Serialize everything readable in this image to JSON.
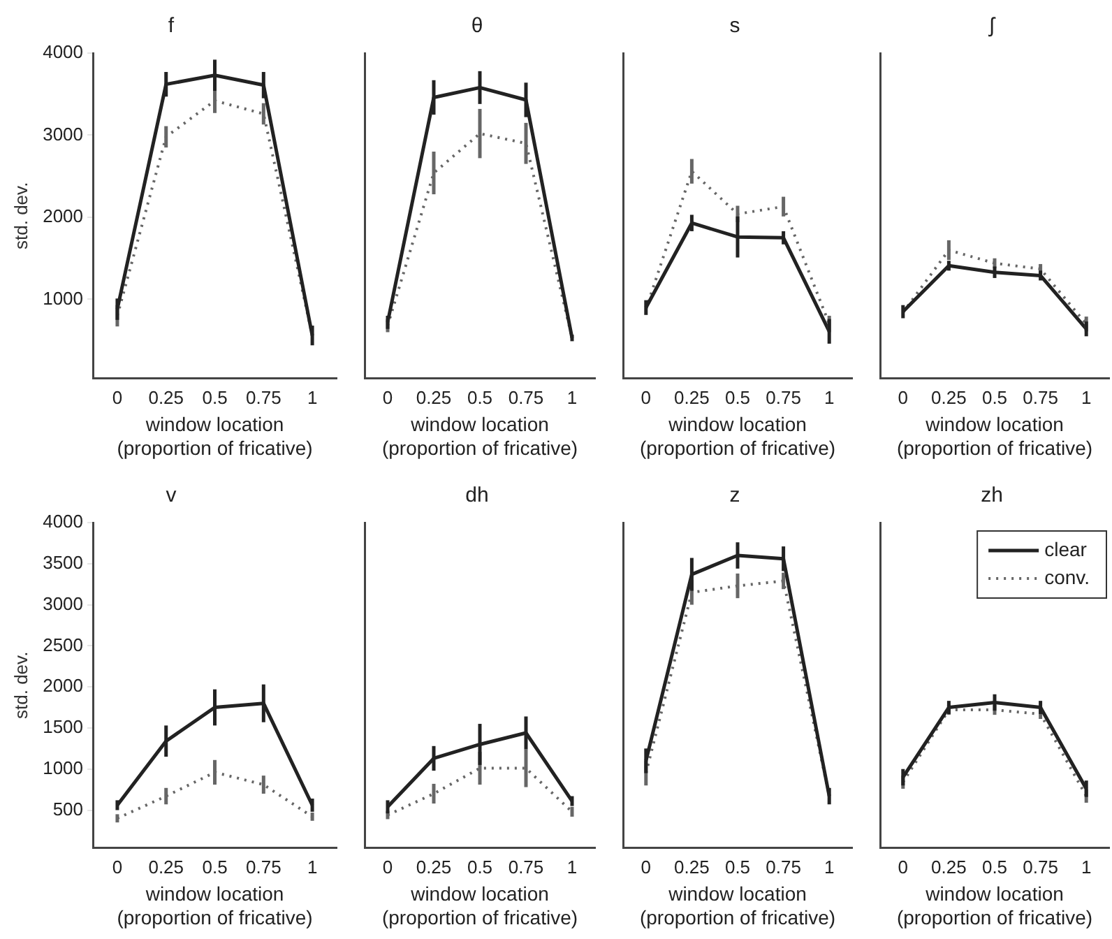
{
  "chart_data": [
    {
      "type": "line",
      "title": "f",
      "xlabel": "window location\n(proportion of fricative)",
      "ylabel": "std. dev.",
      "x": [
        0,
        0.25,
        0.5,
        0.75,
        1
      ],
      "xlim": [
        -0.125,
        1.125
      ],
      "xticks": [
        0,
        0.25,
        0.5,
        0.75,
        1
      ],
      "ylim": [
        37,
        4000
      ],
      "yticks": [
        1000,
        2000,
        3000,
        4000
      ],
      "marker": "none",
      "legend": false,
      "series": [
        {
          "color": "#222222",
          "line_style": "solid",
          "values": [
            880,
            3620,
            3730,
            3610,
            560
          ],
          "errors": [
            130,
            150,
            190,
            160,
            120
          ]
        },
        {
          "color": "#666666",
          "line_style": "dotted",
          "values": [
            800,
            2980,
            3420,
            3260,
            560
          ],
          "errors": [
            130,
            130,
            150,
            130,
            null
          ]
        }
      ]
    },
    {
      "type": "line",
      "title": "θ",
      "xlabel": "window location\n(proportion of fricative)",
      "x": [
        0,
        0.25,
        0.5,
        0.75,
        1
      ],
      "xlim": [
        -0.125,
        1.125
      ],
      "xticks": [
        0,
        0.25,
        0.5,
        0.75,
        1
      ],
      "ylim": [
        37,
        4000
      ],
      "yticks": [
        1000,
        2000,
        3000,
        4000
      ],
      "tick_labels": "x",
      "marker": "none",
      "legend": false,
      "series": [
        {
          "color": "#222222",
          "line_style": "solid",
          "values": [
            720,
            3460,
            3580,
            3430,
            530
          ],
          "errors": [
            80,
            210,
            200,
            210,
            40
          ]
        },
        {
          "color": "#666666",
          "line_style": "dotted",
          "values": [
            680,
            2540,
            3020,
            2900,
            530
          ],
          "errors": [
            80,
            260,
            300,
            250,
            null
          ]
        }
      ]
    },
    {
      "type": "line",
      "title": "s",
      "xlabel": "window location\n(proportion of fricative)",
      "x": [
        0,
        0.25,
        0.5,
        0.75,
        1
      ],
      "xlim": [
        -0.125,
        1.125
      ],
      "xticks": [
        0,
        0.25,
        0.5,
        0.75,
        1
      ],
      "ylim": [
        37,
        4000
      ],
      "yticks": [
        1000,
        2000,
        3000,
        4000
      ],
      "tick_labels": "x",
      "marker": "none",
      "legend": false,
      "series": [
        {
          "color": "#222222",
          "line_style": "solid",
          "values": [
            900,
            1930,
            1760,
            1750,
            610
          ],
          "errors": [
            90,
            100,
            250,
            80,
            150
          ]
        },
        {
          "color": "#666666",
          "line_style": "dotted",
          "values": [
            880,
            2560,
            2040,
            2130,
            700
          ],
          "errors": [
            null,
            150,
            100,
            120,
            100
          ]
        }
      ]
    },
    {
      "type": "line",
      "title": "ʃ",
      "xlabel": "window location\n(proportion of fricative)",
      "x": [
        0,
        0.25,
        0.5,
        0.75,
        1
      ],
      "xlim": [
        -0.125,
        1.125
      ],
      "xticks": [
        0,
        0.25,
        0.5,
        0.75,
        1
      ],
      "ylim": [
        37,
        4000
      ],
      "yticks": [
        1000,
        2000,
        3000,
        4000
      ],
      "tick_labels": "x",
      "marker": "none",
      "legend": false,
      "series": [
        {
          "color": "#222222",
          "line_style": "solid",
          "values": [
            850,
            1410,
            1330,
            1290,
            640
          ],
          "errors": [
            80,
            60,
            70,
            60,
            90
          ]
        },
        {
          "color": "#666666",
          "line_style": "dotted",
          "values": [
            840,
            1600,
            1440,
            1370,
            700
          ],
          "errors": [
            null,
            120,
            60,
            60,
            90
          ]
        }
      ]
    },
    {
      "type": "line",
      "title": "v",
      "xlabel": "window location\n(proportion of fricative)",
      "ylabel": "std. dev.",
      "x": [
        0,
        0.25,
        0.5,
        0.75,
        1
      ],
      "xlim": [
        -0.125,
        1.125
      ],
      "xticks": [
        0,
        0.25,
        0.5,
        0.75,
        1
      ],
      "ylim": [
        40,
        4000
      ],
      "yticks": [
        500,
        1000,
        1500,
        2000,
        2500,
        3000,
        3500,
        4000
      ],
      "marker": "none",
      "legend": false,
      "series": [
        {
          "color": "#222222",
          "line_style": "solid",
          "values": [
            560,
            1340,
            1750,
            1800,
            560
          ],
          "errors": [
            60,
            190,
            220,
            230,
            80
          ]
        },
        {
          "color": "#666666",
          "line_style": "dotted",
          "values": [
            400,
            670,
            960,
            810,
            420
          ],
          "errors": [
            50,
            100,
            150,
            110,
            50
          ]
        }
      ]
    },
    {
      "type": "line",
      "title": "dh",
      "xlabel": "window location\n(proportion of fricative)",
      "x": [
        0,
        0.25,
        0.5,
        0.75,
        1
      ],
      "xlim": [
        -0.125,
        1.125
      ],
      "xticks": [
        0,
        0.25,
        0.5,
        0.75,
        1
      ],
      "ylim": [
        40,
        4000
      ],
      "yticks": [
        500,
        1000,
        1500,
        2000,
        2500,
        3000,
        3500,
        4000
      ],
      "tick_labels": "x",
      "marker": "none",
      "legend": false,
      "series": [
        {
          "color": "#222222",
          "line_style": "solid",
          "values": [
            540,
            1130,
            1300,
            1440,
            610
          ],
          "errors": [
            80,
            150,
            250,
            200,
            60
          ]
        },
        {
          "color": "#666666",
          "line_style": "dotted",
          "values": [
            440,
            700,
            1010,
            1010,
            480
          ],
          "errors": [
            50,
            120,
            200,
            230,
            60
          ]
        }
      ]
    },
    {
      "type": "line",
      "title": "z",
      "xlabel": "window location\n(proportion of fricative)",
      "x": [
        0,
        0.25,
        0.5,
        0.75,
        1
      ],
      "xlim": [
        -0.125,
        1.125
      ],
      "xticks": [
        0,
        0.25,
        0.5,
        0.75,
        1
      ],
      "ylim": [
        40,
        4000
      ],
      "yticks": [
        500,
        1000,
        1500,
        2000,
        2500,
        3000,
        3500,
        4000
      ],
      "tick_labels": "x",
      "marker": "none",
      "legend": false,
      "series": [
        {
          "color": "#222222",
          "line_style": "solid",
          "values": [
            1100,
            3370,
            3600,
            3560,
            670
          ],
          "errors": [
            150,
            200,
            160,
            150,
            100
          ]
        },
        {
          "color": "#666666",
          "line_style": "dotted",
          "values": [
            950,
            3150,
            3230,
            3290,
            670
          ],
          "errors": [
            150,
            150,
            150,
            100,
            null
          ]
        }
      ]
    },
    {
      "type": "line",
      "title": "zh",
      "xlabel": "window location\n(proportion of fricative)",
      "x": [
        0,
        0.25,
        0.5,
        0.75,
        1
      ],
      "xlim": [
        -0.125,
        1.125
      ],
      "xticks": [
        0,
        0.25,
        0.5,
        0.75,
        1
      ],
      "ylim": [
        40,
        4000
      ],
      "yticks": [
        500,
        1000,
        1500,
        2000,
        2500,
        3000,
        3500,
        4000
      ],
      "tick_labels": "x",
      "marker": "none",
      "legend": "top right",
      "series": [
        {
          "name": "clear",
          "color": "#222222",
          "line_style": "solid",
          "values": [
            900,
            1750,
            1810,
            1750,
            760
          ],
          "errors": [
            100,
            80,
            100,
            80,
            100
          ]
        },
        {
          "name": "conv.",
          "color": "#666666",
          "line_style": "dotted",
          "values": [
            840,
            1720,
            1720,
            1670,
            670
          ],
          "errors": [
            80,
            60,
            60,
            60,
            80
          ]
        }
      ]
    }
  ]
}
